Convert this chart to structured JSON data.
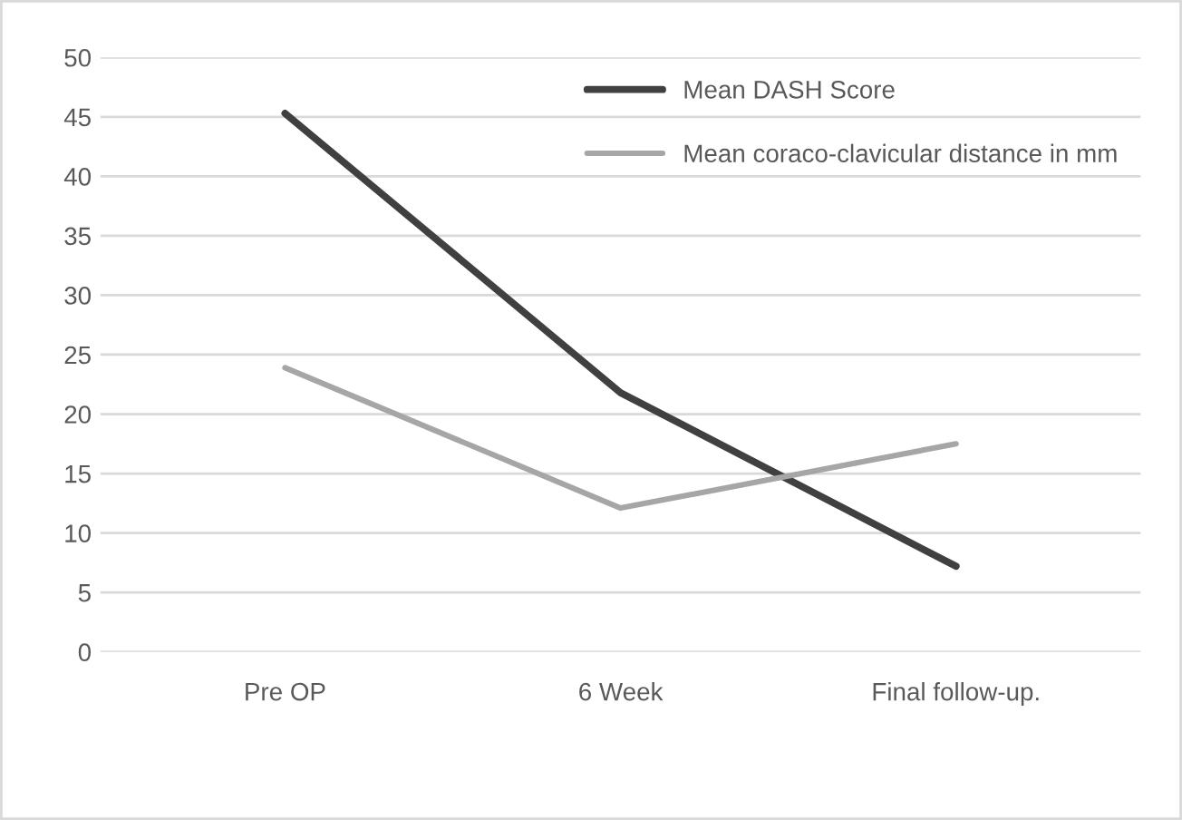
{
  "chart_data": {
    "type": "line",
    "categories": [
      "Pre OP",
      "6 Week",
      "Final follow-up."
    ],
    "series": [
      {
        "name": "Mean DASH Score",
        "color": "#404040",
        "values": [
          45.3,
          21.8,
          7.2
        ]
      },
      {
        "name": "Mean coraco-clavicular distance in mm",
        "color": "#a6a6a6",
        "values": [
          23.9,
          12.1,
          17.5
        ]
      }
    ],
    "ylim": [
      0,
      50
    ],
    "yticks": [
      0,
      5,
      10,
      15,
      20,
      25,
      30,
      35,
      40,
      45,
      50
    ],
    "grid": "y",
    "legend": "top right",
    "marker": "none",
    "line_style": "solid"
  }
}
